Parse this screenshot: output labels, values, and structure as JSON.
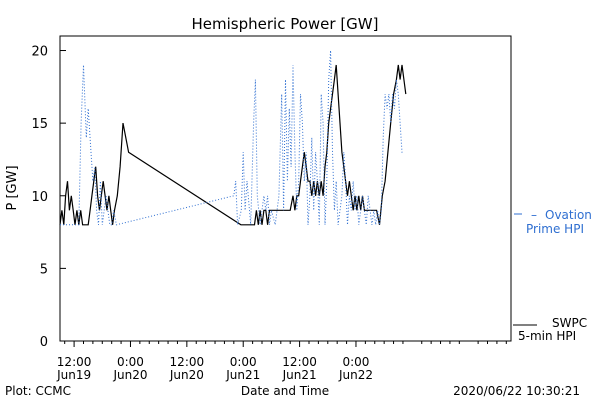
{
  "chart_data": {
    "type": "line",
    "title": "Hemispheric Power [GW]",
    "ylabel": "P [GW]",
    "xlabel": "Date and Time",
    "ylim": [
      0,
      21
    ],
    "xlim_hours": [
      9,
      105
    ],
    "yticks": [
      0,
      5,
      10,
      15,
      20
    ],
    "xticks": [
      {
        "hour": 12,
        "time": "12:00",
        "date": "Jun19"
      },
      {
        "hour": 24,
        "time": "0:00",
        "date": "Jun20"
      },
      {
        "hour": 36,
        "time": "12:00",
        "date": "Jun20"
      },
      {
        "hour": 48,
        "time": "0:00",
        "date": "Jun21"
      },
      {
        "hour": 60,
        "time": "12:00",
        "date": "Jun21"
      },
      {
        "hour": 72,
        "time": "0:00",
        "date": "Jun22"
      }
    ],
    "series": [
      {
        "name": "SWPC 5-min HPI",
        "color": "#000000",
        "style": "solid",
        "points": [
          [
            9.0,
            8
          ],
          [
            9.4,
            9
          ],
          [
            9.8,
            8
          ],
          [
            10.2,
            10
          ],
          [
            10.6,
            11
          ],
          [
            11.0,
            9
          ],
          [
            11.4,
            10
          ],
          [
            11.8,
            9
          ],
          [
            12.2,
            8
          ],
          [
            12.6,
            9
          ],
          [
            13.0,
            8
          ],
          [
            13.4,
            9
          ],
          [
            13.8,
            8
          ],
          [
            14.2,
            8
          ],
          [
            14.6,
            8
          ],
          [
            15.0,
            8
          ],
          [
            15.4,
            9
          ],
          [
            15.8,
            10
          ],
          [
            16.2,
            11
          ],
          [
            16.6,
            12
          ],
          [
            17.0,
            10
          ],
          [
            17.4,
            9
          ],
          [
            17.8,
            10
          ],
          [
            18.2,
            11
          ],
          [
            18.6,
            10
          ],
          [
            19.0,
            9
          ],
          [
            19.4,
            10
          ],
          [
            19.8,
            9
          ],
          [
            20.2,
            8
          ],
          [
            20.6,
            9
          ],
          [
            21.2,
            10
          ],
          [
            21.8,
            12
          ],
          [
            22.4,
            15
          ],
          [
            23.6,
            13
          ],
          [
            47.5,
            8
          ],
          [
            48.5,
            8
          ],
          [
            49.5,
            8
          ],
          [
            50.4,
            8
          ],
          [
            50.8,
            9
          ],
          [
            51.2,
            8
          ],
          [
            51.6,
            9
          ],
          [
            52.0,
            8
          ],
          [
            52.4,
            9
          ],
          [
            52.8,
            9
          ],
          [
            53.2,
            8
          ],
          [
            53.6,
            9
          ],
          [
            54.0,
            9
          ],
          [
            55.0,
            9
          ],
          [
            56.0,
            9
          ],
          [
            57.0,
            9
          ],
          [
            58.0,
            9
          ],
          [
            58.6,
            10
          ],
          [
            59.0,
            9
          ],
          [
            59.4,
            10
          ],
          [
            59.8,
            10
          ],
          [
            60.2,
            11
          ],
          [
            60.6,
            12
          ],
          [
            61.0,
            13
          ],
          [
            61.4,
            12
          ],
          [
            61.8,
            11
          ],
          [
            62.2,
            11
          ],
          [
            62.6,
            10
          ],
          [
            63.0,
            11
          ],
          [
            63.4,
            10
          ],
          [
            63.8,
            11
          ],
          [
            64.2,
            10
          ],
          [
            64.6,
            11
          ],
          [
            65.0,
            10
          ],
          [
            65.4,
            12
          ],
          [
            65.8,
            13
          ],
          [
            66.2,
            15
          ],
          [
            66.6,
            16
          ],
          [
            67.0,
            17
          ],
          [
            67.4,
            18
          ],
          [
            67.8,
            19
          ],
          [
            68.2,
            17
          ],
          [
            68.6,
            15
          ],
          [
            69.0,
            13
          ],
          [
            69.4,
            12
          ],
          [
            69.8,
            11
          ],
          [
            70.2,
            10
          ],
          [
            70.6,
            11
          ],
          [
            71.0,
            10
          ],
          [
            71.4,
            9
          ],
          [
            71.8,
            10
          ],
          [
            72.2,
            9
          ],
          [
            72.6,
            10
          ],
          [
            73.0,
            9
          ],
          [
            73.4,
            10
          ],
          [
            73.8,
            9
          ],
          [
            74.2,
            9
          ],
          [
            75.0,
            9
          ],
          [
            76.0,
            9
          ],
          [
            76.4,
            9
          ],
          [
            77.0,
            8
          ],
          [
            77.6,
            10
          ],
          [
            78.2,
            11
          ],
          [
            78.8,
            13
          ],
          [
            79.4,
            15
          ],
          [
            80.0,
            17
          ],
          [
            80.6,
            18
          ],
          [
            81.0,
            19
          ],
          [
            81.4,
            18
          ],
          [
            81.8,
            19
          ],
          [
            82.2,
            18
          ],
          [
            82.6,
            17
          ]
        ]
      },
      {
        "name": "Ovation Prime HPI",
        "color": "#2f6fd1",
        "style": "dotted",
        "points": [
          [
            9.0,
            8
          ],
          [
            11.0,
            8
          ],
          [
            12.0,
            8
          ],
          [
            13.0,
            8
          ],
          [
            13.5,
            15
          ],
          [
            14.0,
            19
          ],
          [
            14.6,
            14
          ],
          [
            15.0,
            16
          ],
          [
            15.6,
            13
          ],
          [
            16.0,
            11
          ],
          [
            16.4,
            12
          ],
          [
            16.8,
            9
          ],
          [
            17.2,
            8
          ],
          [
            17.6,
            11
          ],
          [
            18.0,
            8
          ],
          [
            18.4,
            9
          ],
          [
            18.8,
            10
          ],
          [
            19.2,
            9
          ],
          [
            19.6,
            8
          ],
          [
            20.0,
            8
          ],
          [
            20.4,
            9
          ],
          [
            21.0,
            8
          ],
          [
            46.0,
            10
          ],
          [
            46.4,
            11
          ],
          [
            46.8,
            8
          ],
          [
            47.6,
            9
          ],
          [
            48.0,
            13
          ],
          [
            48.4,
            9
          ],
          [
            48.8,
            11
          ],
          [
            49.6,
            8
          ],
          [
            50.2,
            15
          ],
          [
            50.6,
            18
          ],
          [
            51.0,
            10
          ],
          [
            51.6,
            8
          ],
          [
            52.0,
            9
          ],
          [
            52.4,
            10
          ],
          [
            52.8,
            9
          ],
          [
            53.2,
            10
          ],
          [
            53.6,
            8
          ],
          [
            54.0,
            9
          ],
          [
            54.8,
            8
          ],
          [
            55.6,
            10
          ],
          [
            56.2,
            17
          ],
          [
            56.6,
            9
          ],
          [
            57.0,
            18
          ],
          [
            57.4,
            11
          ],
          [
            57.8,
            16
          ],
          [
            58.2,
            12
          ],
          [
            58.6,
            19
          ],
          [
            59.0,
            13
          ],
          [
            59.4,
            9
          ],
          [
            59.8,
            11
          ],
          [
            60.2,
            17
          ],
          [
            60.6,
            15
          ],
          [
            61.0,
            11
          ],
          [
            61.4,
            13
          ],
          [
            61.8,
            8
          ],
          [
            62.2,
            10
          ],
          [
            62.6,
            14
          ],
          [
            63.0,
            9
          ],
          [
            63.4,
            13
          ],
          [
            63.8,
            11
          ],
          [
            64.2,
            8
          ],
          [
            64.6,
            17
          ],
          [
            65.0,
            15
          ],
          [
            65.4,
            8
          ],
          [
            65.8,
            11
          ],
          [
            66.2,
            18
          ],
          [
            66.6,
            20
          ],
          [
            67.0,
            13
          ],
          [
            67.4,
            9
          ],
          [
            67.8,
            11
          ],
          [
            68.2,
            8
          ],
          [
            68.6,
            9
          ],
          [
            69.0,
            10
          ],
          [
            69.4,
            13
          ],
          [
            69.8,
            11
          ],
          [
            70.2,
            8
          ],
          [
            70.6,
            10
          ],
          [
            71.0,
            9
          ],
          [
            71.4,
            11
          ],
          [
            71.8,
            9
          ],
          [
            72.2,
            10
          ],
          [
            72.6,
            8
          ],
          [
            73.0,
            9
          ],
          [
            73.4,
            10
          ],
          [
            73.8,
            9
          ],
          [
            74.2,
            8
          ],
          [
            74.6,
            10
          ],
          [
            75.0,
            9
          ],
          [
            75.4,
            8
          ],
          [
            75.8,
            9
          ],
          [
            76.2,
            8
          ],
          [
            76.6,
            9
          ],
          [
            77.0,
            8
          ],
          [
            77.4,
            9
          ],
          [
            77.8,
            14
          ],
          [
            78.2,
            17
          ],
          [
            78.6,
            16
          ],
          [
            79.0,
            17
          ],
          [
            79.4,
            15
          ],
          [
            79.8,
            17
          ],
          [
            80.2,
            16
          ],
          [
            80.6,
            18
          ],
          [
            81.0,
            17
          ],
          [
            81.4,
            15
          ],
          [
            81.8,
            13
          ],
          [
            82.2,
            13
          ]
        ]
      }
    ],
    "legend": {
      "ovation_line1": "Ovation",
      "ovation_line2": "Prime HPI",
      "swpc_line1": "SWPC",
      "swpc_line2": "5-min HPI"
    }
  },
  "footer": {
    "left": "Plot: CCMC",
    "right": "2020/06/22 10:30:21"
  }
}
